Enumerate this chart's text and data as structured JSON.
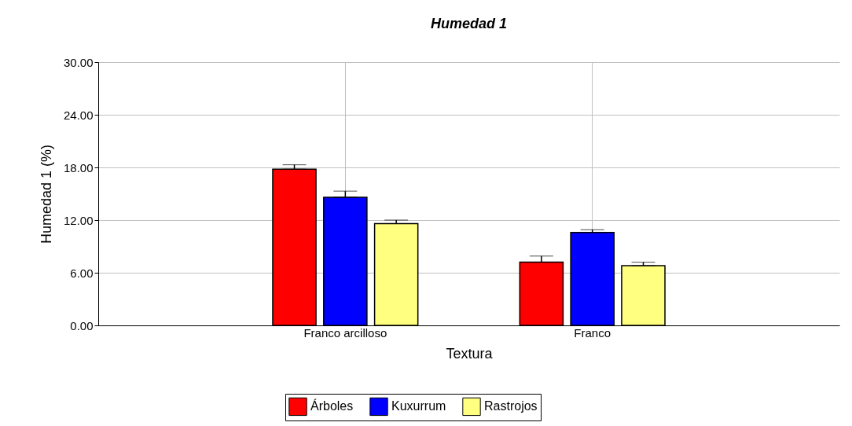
{
  "chart_data": {
    "type": "bar",
    "title": "Humedad 1",
    "xlabel": "Textura",
    "ylabel": "Humedad 1 (%)",
    "categories": [
      "Franco arcilloso",
      "Franco"
    ],
    "series": [
      {
        "name": "Árboles",
        "color": "#ff0000",
        "values": [
          17.8,
          7.2
        ],
        "errors": [
          0.5,
          0.7
        ]
      },
      {
        "name": "Kuxurrum",
        "color": "#0000ff",
        "values": [
          14.6,
          10.6
        ],
        "errors": [
          0.7,
          0.3
        ]
      },
      {
        "name": "Rastrojos",
        "color": "#ffff80",
        "values": [
          11.6,
          6.8
        ],
        "errors": [
          0.4,
          0.4
        ]
      }
    ],
    "ylim": [
      0,
      30
    ],
    "yticks": [
      {
        "value": 0,
        "label": "0.00"
      },
      {
        "value": 6,
        "label": "6.00"
      },
      {
        "value": 12,
        "label": "12.00"
      },
      {
        "value": 18,
        "label": "18.00"
      },
      {
        "value": 24,
        "label": "24.00"
      },
      {
        "value": 30,
        "label": "30.00"
      }
    ],
    "grid": true,
    "legend": "bottom"
  }
}
